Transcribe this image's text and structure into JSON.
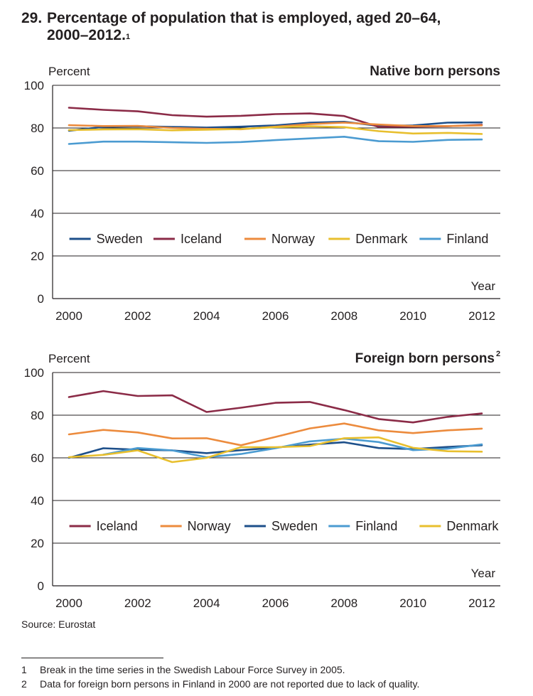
{
  "figure": {
    "number": "29.",
    "title_line1": "Percentage of population that is employed, aged 20–64,",
    "title_line2": "2000–2012.",
    "title_sup": "1"
  },
  "source": "Source: Eurostat",
  "footnotes": [
    {
      "num": "1",
      "text": "Break in the time series in the Swedish Labour Force Survey in 2005."
    },
    {
      "num": "2",
      "text": "Data for foreign born persons in Finland in 2000 are not reported due to lack of quality."
    }
  ],
  "colors": {
    "Sweden": "#1d4f8a",
    "Iceland": "#8b2b47",
    "Norway": "#ec8b3d",
    "Denmark": "#e8bf2e",
    "Finland": "#4b9bd1",
    "axis": "#231f20"
  },
  "chart_data": [
    {
      "type": "line",
      "title": "Native born persons",
      "title_sup": "",
      "ylabel": "Percent",
      "xlabel": "Year",
      "ylim": [
        0,
        100
      ],
      "yticks": [
        0,
        20,
        40,
        60,
        80,
        100
      ],
      "xticks": [
        2000,
        2002,
        2004,
        2006,
        2008,
        2010,
        2012
      ],
      "grid": true,
      "legend_position": "lower-middle",
      "x": [
        2000,
        2001,
        2002,
        2003,
        2004,
        2005,
        2006,
        2007,
        2008,
        2009,
        2010,
        2011,
        2012
      ],
      "series": [
        {
          "name": "Sweden",
          "values": [
            78.7,
            80.5,
            80.8,
            80.5,
            80.2,
            80.6,
            81.2,
            82.5,
            82.9,
            81.0,
            81.2,
            82.5,
            82.6
          ]
        },
        {
          "name": "Iceland",
          "values": [
            89.5,
            88.5,
            87.8,
            86.0,
            85.3,
            85.7,
            86.5,
            86.8,
            85.6,
            80.5,
            80.6,
            80.8,
            81.5
          ]
        },
        {
          "name": "Norway",
          "values": [
            81.3,
            80.9,
            81.0,
            80.0,
            79.6,
            79.4,
            80.6,
            81.8,
            82.5,
            81.6,
            80.9,
            80.9,
            81.2
          ]
        },
        {
          "name": "Denmark",
          "values": [
            79.0,
            79.3,
            79.4,
            78.9,
            79.2,
            79.5,
            80.4,
            80.8,
            80.4,
            78.5,
            77.4,
            77.7,
            77.2
          ]
        },
        {
          "name": "Finland",
          "values": [
            72.5,
            73.6,
            73.6,
            73.3,
            73.0,
            73.4,
            74.3,
            75.1,
            75.9,
            73.8,
            73.5,
            74.4,
            74.6
          ]
        }
      ]
    },
    {
      "type": "line",
      "title": "Foreign born persons",
      "title_sup": "2",
      "ylabel": "Percent",
      "xlabel": "Year",
      "ylim": [
        0,
        100
      ],
      "yticks": [
        0,
        20,
        40,
        60,
        80,
        100
      ],
      "xticks": [
        2000,
        2002,
        2004,
        2006,
        2008,
        2010,
        2012
      ],
      "grid": true,
      "legend_position": "lower-middle",
      "x": [
        2000,
        2001,
        2002,
        2003,
        2004,
        2005,
        2006,
        2007,
        2008,
        2009,
        2010,
        2011,
        2012
      ],
      "series": [
        {
          "name": "Iceland",
          "values": [
            88.5,
            91.3,
            89.0,
            89.3,
            81.5,
            83.5,
            85.8,
            86.2,
            82.4,
            78.2,
            76.6,
            79.2,
            80.8
          ]
        },
        {
          "name": "Norway",
          "values": [
            71.0,
            73.1,
            71.9,
            69.1,
            69.2,
            65.9,
            69.8,
            73.8,
            76.1,
            72.9,
            71.6,
            72.9,
            73.7
          ]
        },
        {
          "name": "Sweden",
          "values": [
            60.0,
            64.5,
            63.8,
            63.5,
            62.2,
            63.6,
            64.8,
            66.2,
            67.3,
            64.6,
            64.1,
            65.1,
            65.9
          ]
        },
        {
          "name": "Finland",
          "values": [
            null,
            61.5,
            64.6,
            63.5,
            60.3,
            61.8,
            64.5,
            67.7,
            69.0,
            67.4,
            63.6,
            64.3,
            66.3
          ]
        },
        {
          "name": "Denmark",
          "values": [
            60.3,
            61.4,
            63.5,
            58.0,
            60.0,
            65.0,
            65.0,
            65.5,
            69.2,
            69.6,
            64.7,
            63.1,
            62.9
          ]
        }
      ]
    }
  ]
}
